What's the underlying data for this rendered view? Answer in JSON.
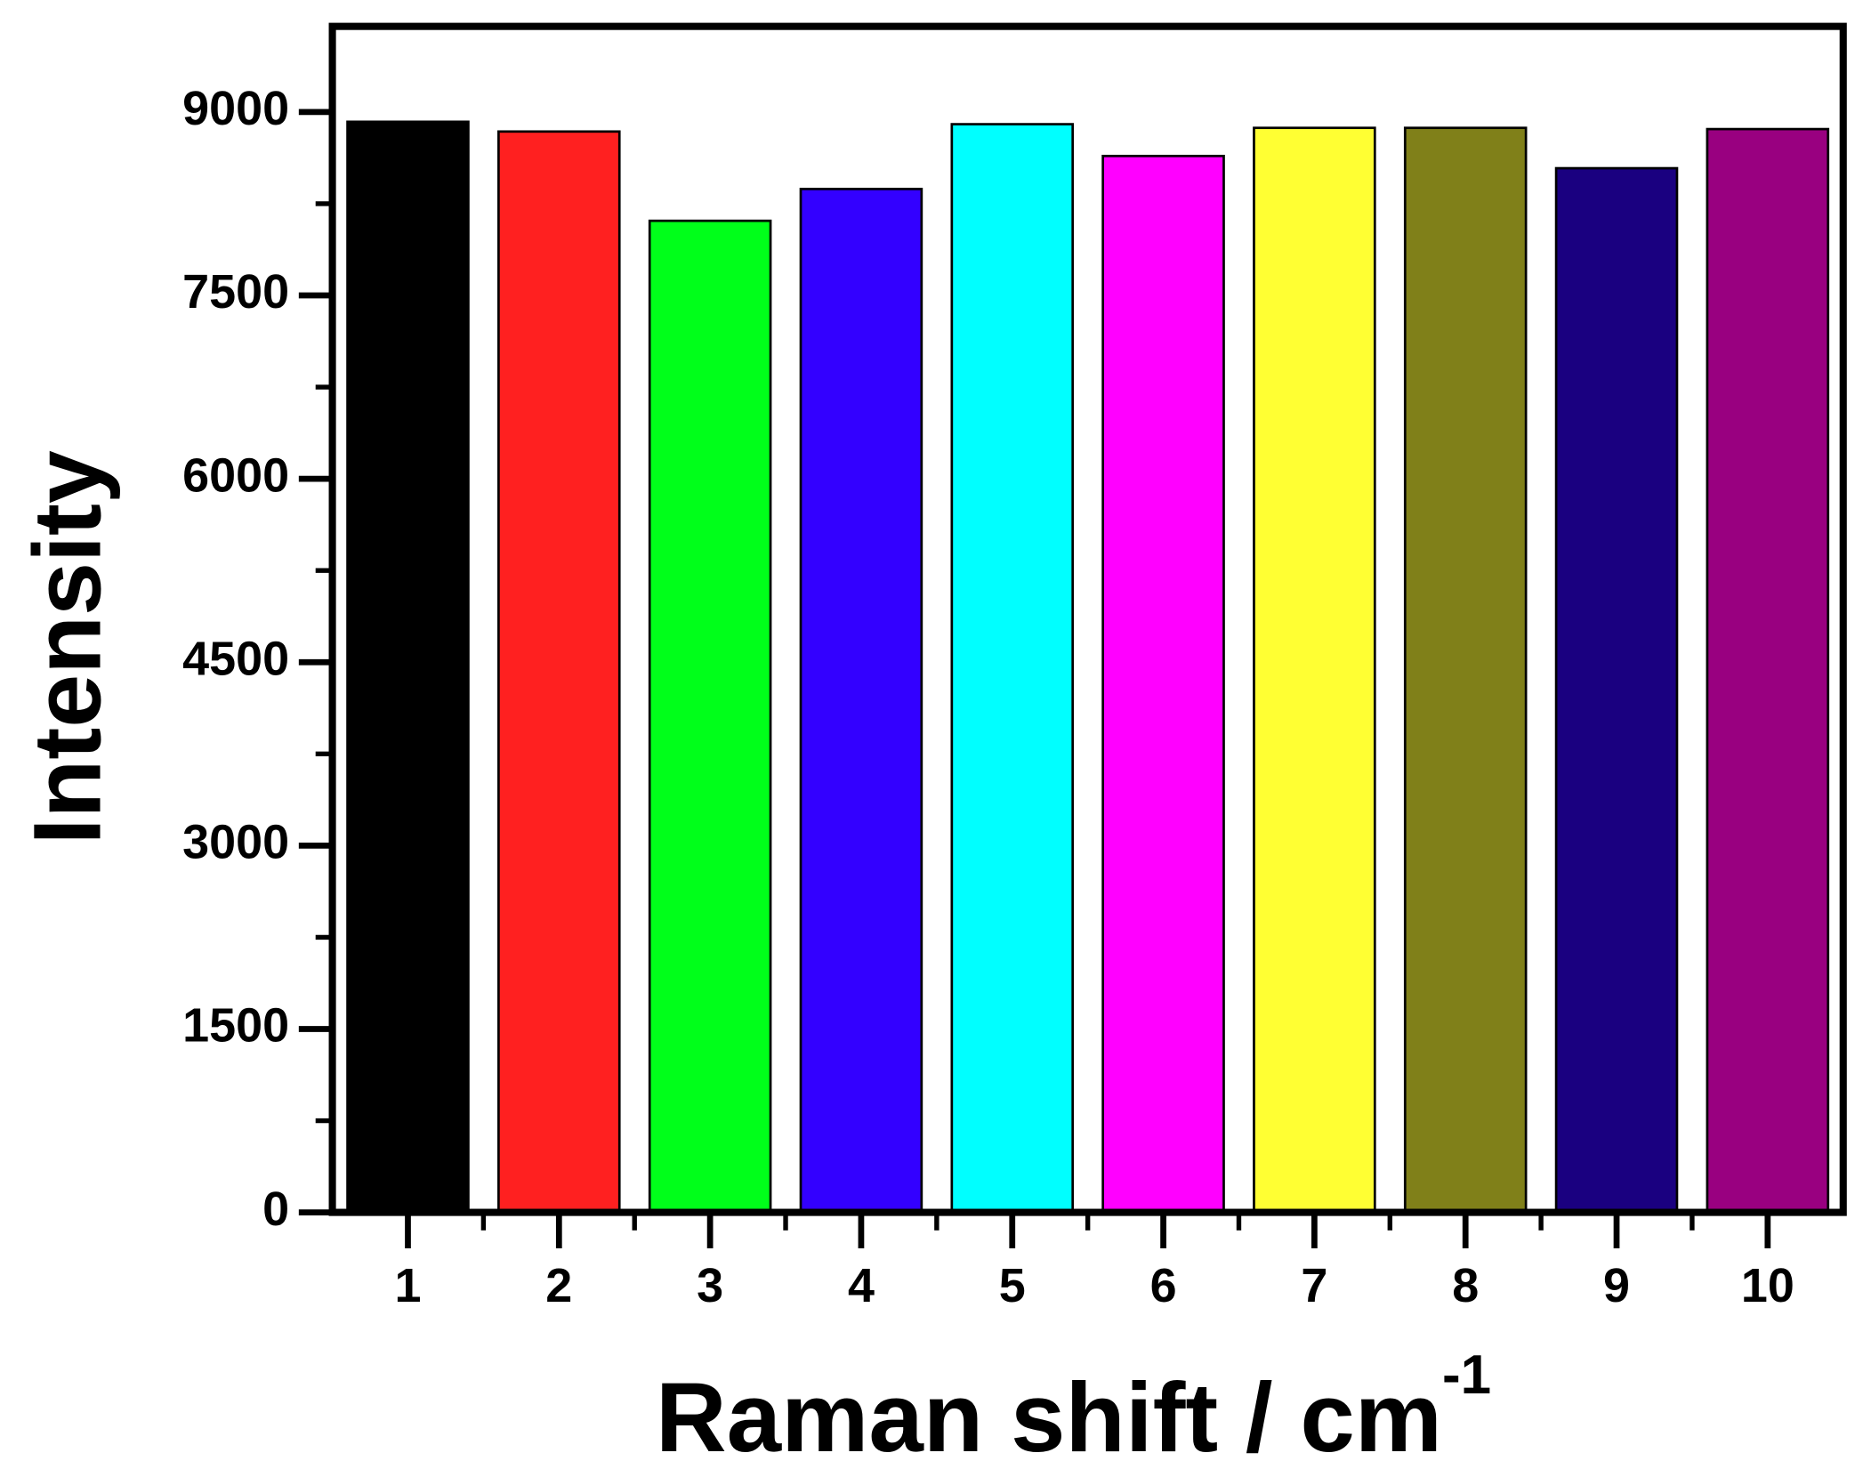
{
  "chart_data": {
    "type": "bar",
    "xlabel": {
      "text": "Raman shift / cm",
      "superscript": "-1"
    },
    "ylabel": "Intensity",
    "categories": [
      "1",
      "2",
      "3",
      "4",
      "5",
      "6",
      "7",
      "8",
      "9",
      "10"
    ],
    "values": [
      8920,
      8840,
      8110,
      8370,
      8900,
      8640,
      8870,
      8870,
      8540,
      8860
    ],
    "colors": [
      "#000000",
      "#ff2020",
      "#00ff1a",
      "#3300ff",
      "#00ffff",
      "#ff00ff",
      "#ffff33",
      "#808019",
      "#1a0080",
      "#990080"
    ],
    "ylim": [
      0,
      9700
    ],
    "yticks": [
      0,
      1500,
      3000,
      4500,
      6000,
      7500,
      9000
    ],
    "grid": false
  }
}
